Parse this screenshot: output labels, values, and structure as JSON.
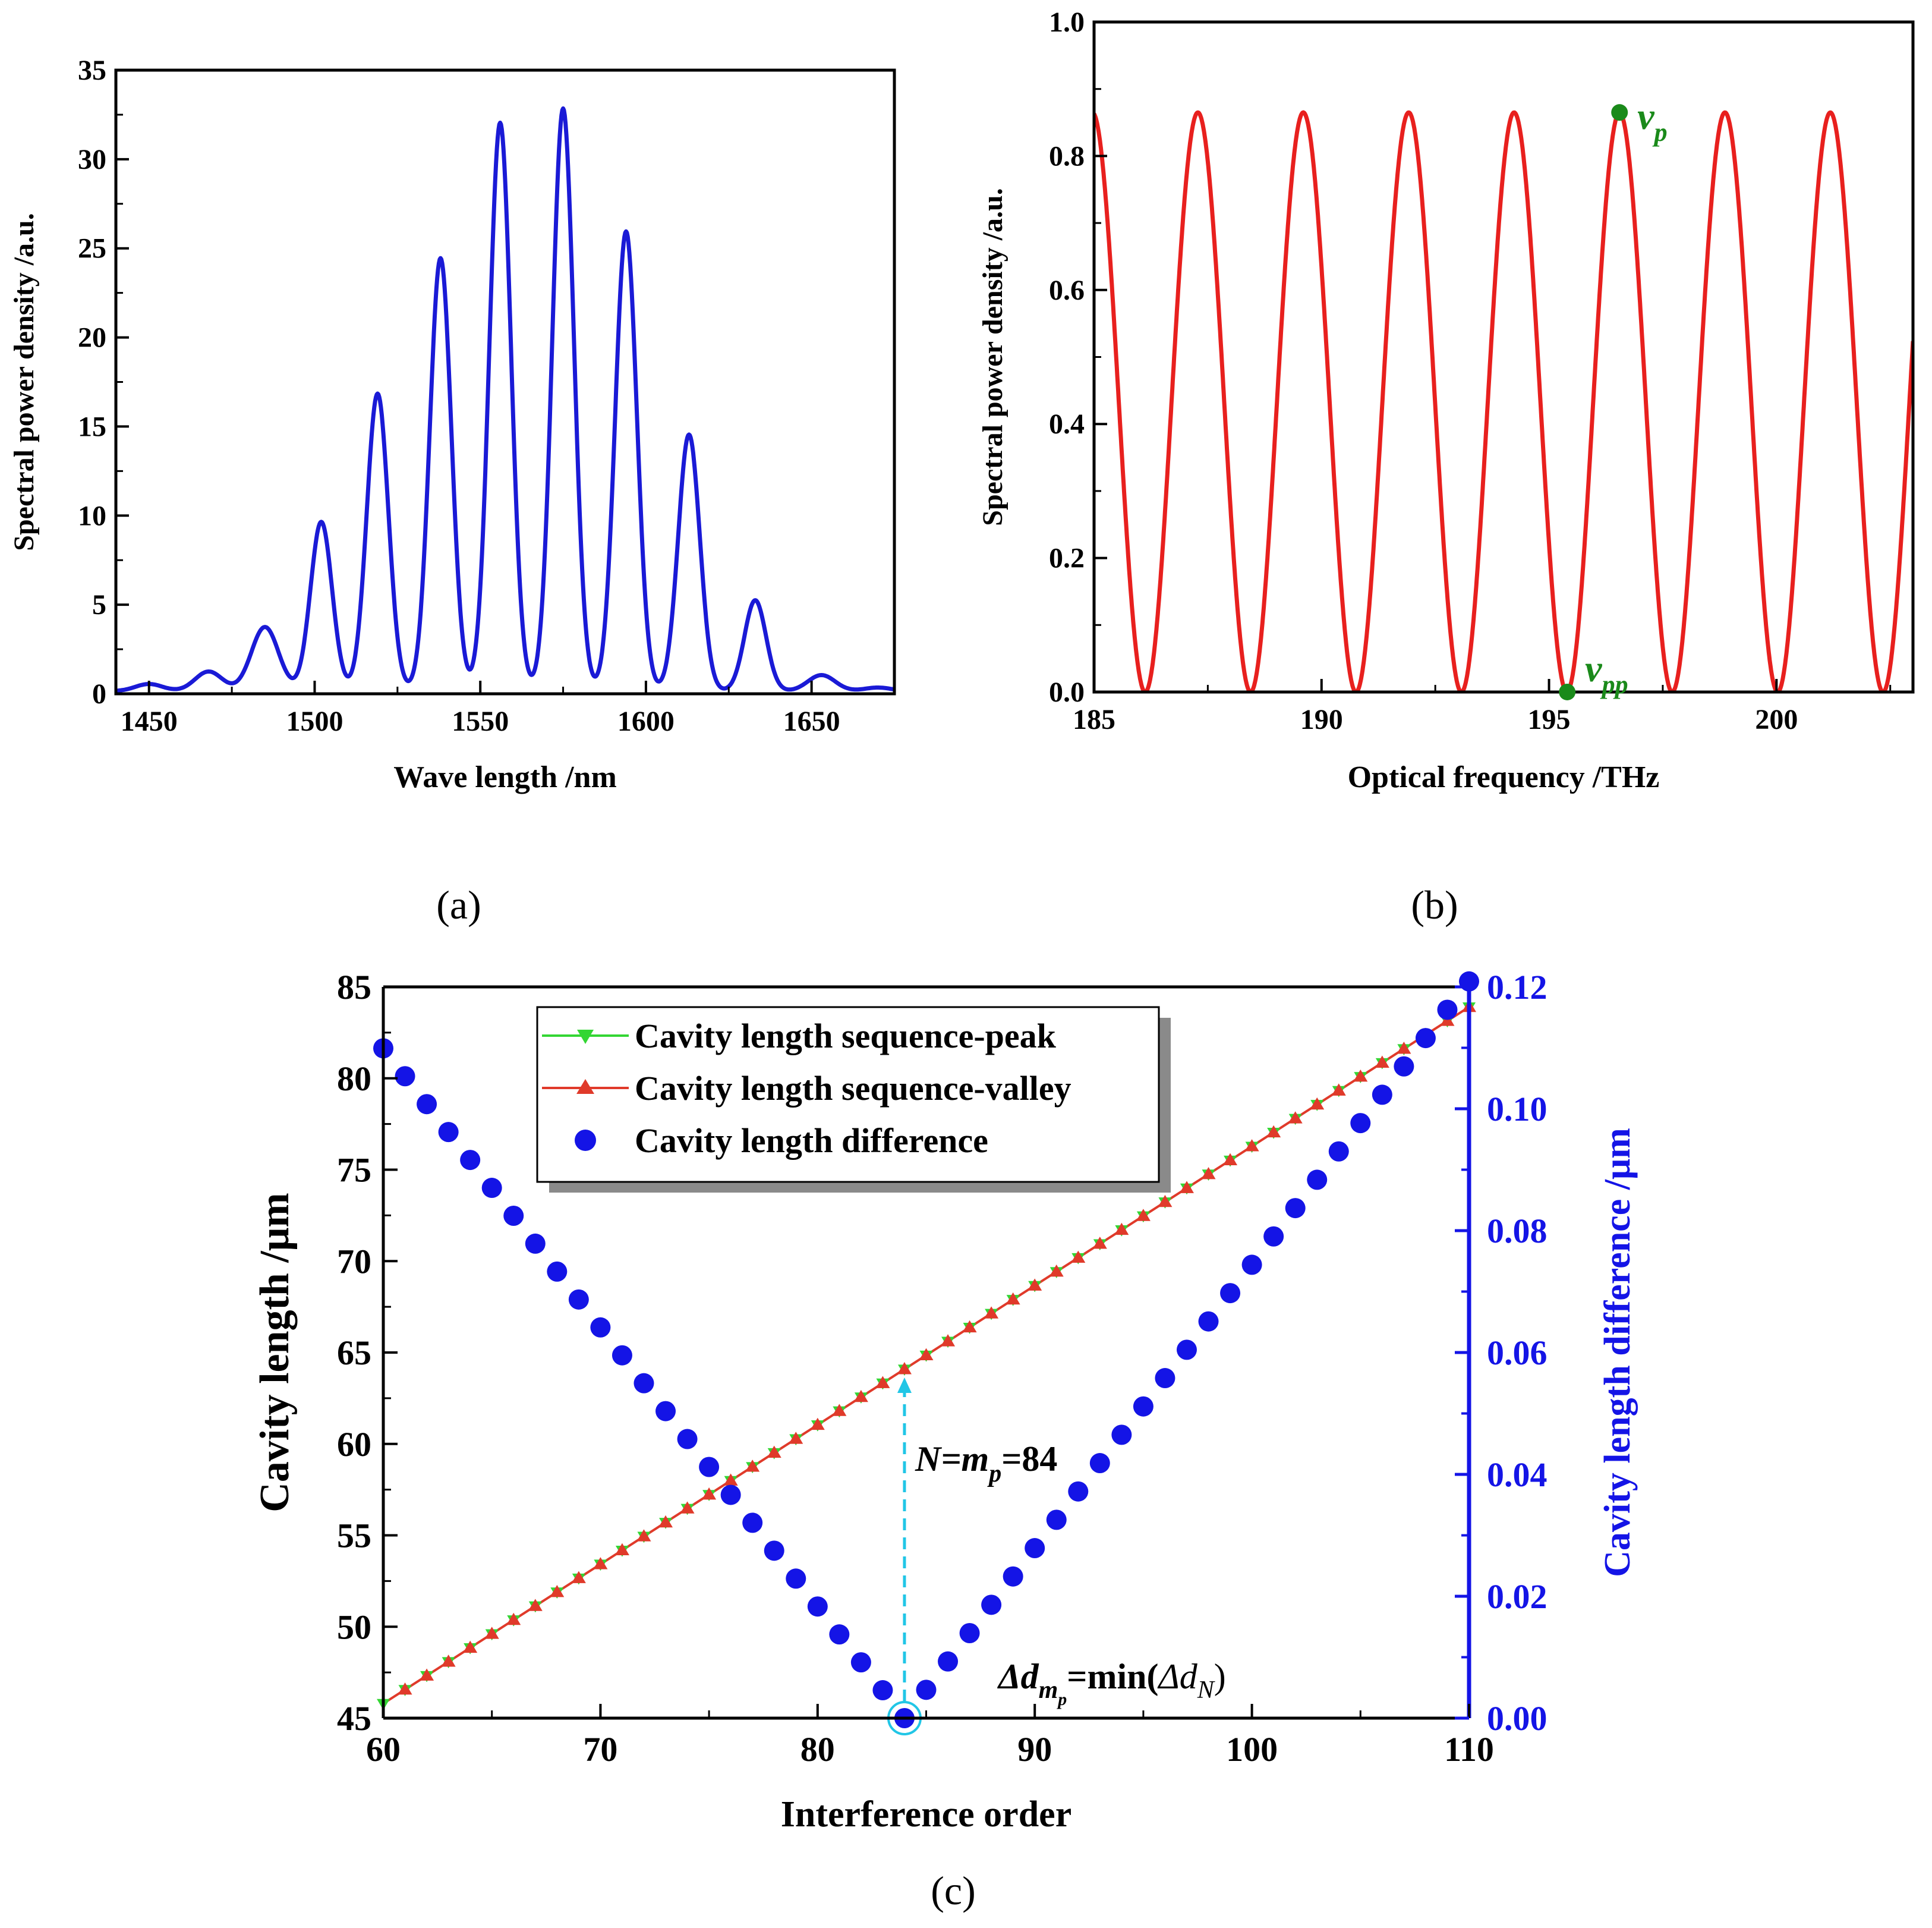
{
  "chart_data": [
    {
      "panel": "(a)",
      "type": "line",
      "xlabel": "Wave length /nm",
      "ylabel": "Spectral power density /a.u.",
      "xlim": [
        1440,
        1675
      ],
      "ylim": [
        0,
        35
      ],
      "xticks": [
        1450,
        1500,
        1550,
        1600,
        1650
      ],
      "yticks": [
        0,
        5,
        10,
        15,
        20,
        25,
        30,
        35
      ],
      "color": "#1a1ad6",
      "peaks": [
        {
          "x": 1450,
          "y": 0.4
        },
        {
          "x": 1468,
          "y": 1.1
        },
        {
          "x": 1485,
          "y": 3.6
        },
        {
          "x": 1502,
          "y": 9.5
        },
        {
          "x": 1519,
          "y": 16.7
        },
        {
          "x": 1538,
          "y": 24.3
        },
        {
          "x": 1556,
          "y": 31.9
        },
        {
          "x": 1575,
          "y": 32.7
        },
        {
          "x": 1594,
          "y": 25.8
        },
        {
          "x": 1613,
          "y": 14.4
        },
        {
          "x": 1633,
          "y": 5.1
        },
        {
          "x": 1653,
          "y": 0.9
        },
        {
          "x": 1670,
          "y": 0.2
        }
      ]
    },
    {
      "panel": "(b)",
      "type": "line",
      "xlabel": "Optical frequency /THz",
      "ylabel": "Spectral power density /a.u.",
      "xlim": [
        185,
        203
      ],
      "ylim": [
        0,
        1.0
      ],
      "xticks": [
        185,
        190,
        195,
        200
      ],
      "yticks": [
        0.0,
        0.2,
        0.4,
        0.6,
        0.8,
        1.0
      ],
      "ytick_labels": [
        "0.0",
        "0.2",
        "0.4",
        "0.6",
        "0.8",
        "1.0"
      ],
      "color": "#e8201e",
      "amplitude": 0.865,
      "period_thz": 2.317,
      "peak_frequency_thz": 196.55,
      "markers": [
        {
          "label": "v",
          "sub": "p",
          "x": 196.55,
          "y": 0.865
        },
        {
          "label": "v",
          "sub": "pp",
          "x": 195.4,
          "y": 0.0
        }
      ],
      "marker_color": "#1a8a1a"
    },
    {
      "panel": "(c)",
      "type": "scatter",
      "xlabel": "Interference order",
      "ylabel_left": "Cavity length /μm",
      "ylabel_right": "Cavity length difference /μm",
      "xlim": [
        60,
        110
      ],
      "ylim_left": [
        45,
        85
      ],
      "ylim_right": [
        0,
        0.12
      ],
      "xticks": [
        60,
        70,
        80,
        90,
        100,
        110
      ],
      "yticks_left": [
        45,
        50,
        55,
        60,
        65,
        70,
        75,
        80,
        85
      ],
      "yticks_right": [
        0.0,
        0.02,
        0.04,
        0.06,
        0.08,
        0.1,
        0.12
      ],
      "ytick_right_labels": [
        "0.00",
        "0.02",
        "0.04",
        "0.06",
        "0.08",
        "0.10",
        "0.12"
      ],
      "series": [
        {
          "name": "Cavity length sequence-peak",
          "color": "#33d633",
          "marker": "triangle-down",
          "x_start": 60,
          "x_end": 110,
          "y_start": 45.8,
          "y_end": 83.9
        },
        {
          "name": "Cavity length sequence-valley",
          "color": "#e03a2a",
          "marker": "triangle-up",
          "x_start": 60,
          "x_end": 110,
          "y_start": 45.8,
          "y_end": 83.9
        },
        {
          "name": "Cavity length difference",
          "color": "#1414e6",
          "marker": "circle",
          "axis": "right",
          "x_start": 60,
          "x_end": 110,
          "min_x": 84,
          "slope_left": 0.00458,
          "slope_right": 0.00465
        }
      ],
      "annotations": {
        "order_label": {
          "prefix": "N=m",
          "sub": "p",
          "suffix": "=84"
        },
        "min_label": {
          "delta": "Δd",
          "sub_m": "m",
          "sub_p": "p",
          "mid": "=min(",
          "delta2": "Δd",
          "sub_n": "N",
          "close": ")"
        }
      },
      "highlight_color": "#21c6e6"
    }
  ],
  "panel_labels": {
    "a": "(a)",
    "b": "(b)",
    "c": "(c)"
  }
}
